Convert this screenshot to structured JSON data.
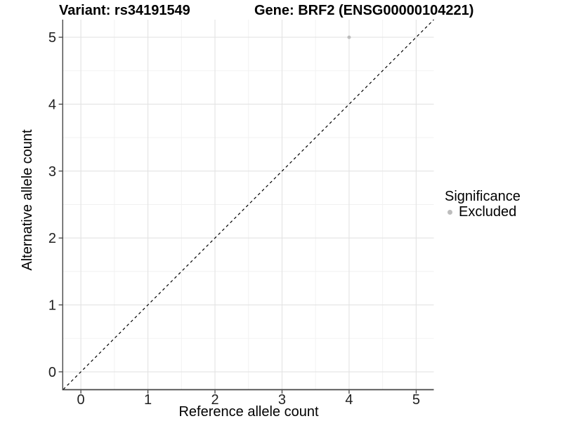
{
  "page": {
    "background": "#ffffff"
  },
  "chart_data": {
    "type": "scatter",
    "titles": {
      "left": "Variant: rs34191549",
      "right": "Gene: BRF2 (ENSG00000104221)"
    },
    "xlabel": "Reference allele count",
    "ylabel": "Alternative allele count",
    "xlim": [
      -0.263,
      5.263
    ],
    "ylim": [
      -0.263,
      5.263
    ],
    "xticks": [
      0,
      1,
      2,
      3,
      4,
      5
    ],
    "yticks": [
      0,
      1,
      2,
      3,
      4,
      5
    ],
    "xticks_minor": [
      0.5,
      1.5,
      2.5,
      3.5,
      4.5
    ],
    "yticks_minor": [
      0.5,
      1.5,
      2.5,
      3.5,
      4.5
    ],
    "grid": {
      "show": true,
      "major_color": "#e3e3e3",
      "minor_color": "#f1f1f1"
    },
    "axis": {
      "line_color": "#474747",
      "tick_color": "#333333",
      "tick_label_color": "#1f1f1f"
    },
    "identity_line": {
      "show": true,
      "style": "dashed",
      "color": "#000000"
    },
    "series": [
      {
        "name": "Excluded",
        "color": "#bdbdbd",
        "points": [
          {
            "x": 4,
            "y": 5
          }
        ]
      }
    ],
    "legend": {
      "title": "Significance",
      "position": "right",
      "items": [
        {
          "label": "Excluded",
          "color": "#bdbdbd"
        }
      ]
    }
  }
}
